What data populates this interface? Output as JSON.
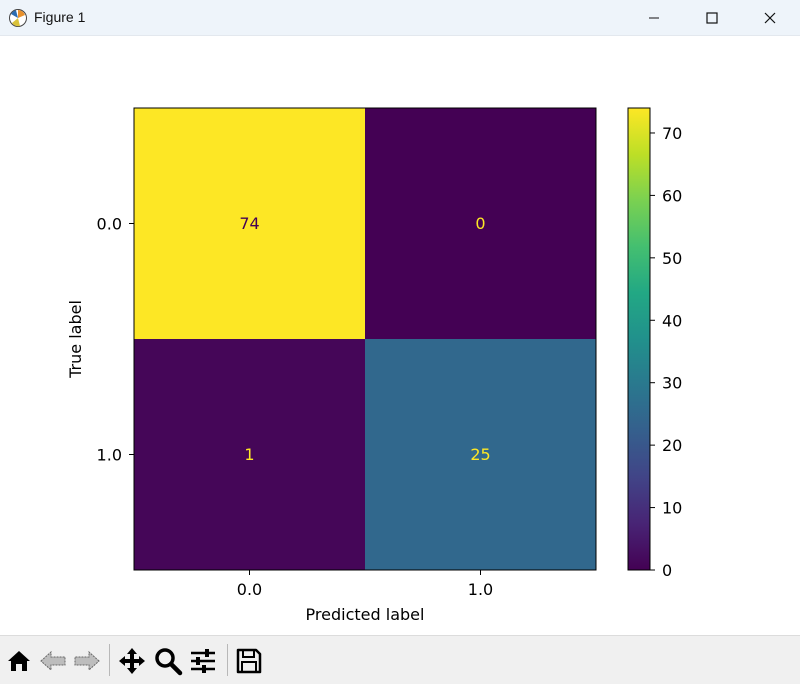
{
  "window": {
    "title": "Figure 1",
    "app_icon": "matplotlib-icon",
    "controls": [
      "minimize-icon",
      "maximize-icon",
      "close-icon"
    ]
  },
  "chart_data": {
    "type": "heatmap",
    "title": "",
    "xlabel": "Predicted label",
    "ylabel": "True label",
    "x_categories": [
      "0.0",
      "1.0"
    ],
    "y_categories": [
      "0.0",
      "1.0"
    ],
    "values": [
      [
        74,
        0
      ],
      [
        1,
        25
      ]
    ],
    "colormap": "viridis",
    "colorbar": {
      "min": 0,
      "max": 74,
      "ticks": [
        "0",
        "10",
        "20",
        "30",
        "40",
        "50",
        "60",
        "70"
      ]
    },
    "colors": {
      "high": "#fde725",
      "low": "#440154",
      "mid_25": "#31688e",
      "text_on_dark": "#fde725",
      "text_on_light": "#440154"
    }
  },
  "toolbar": {
    "buttons": [
      {
        "name": "home-button",
        "icon": "home-icon"
      },
      {
        "name": "back-button",
        "icon": "back-arrow-icon"
      },
      {
        "name": "forward-button",
        "icon": "forward-arrow-icon"
      },
      {
        "name": "pan-button",
        "icon": "move-icon"
      },
      {
        "name": "zoom-button",
        "icon": "zoom-icon"
      },
      {
        "name": "configure-subplots-button",
        "icon": "sliders-icon"
      },
      {
        "name": "save-button",
        "icon": "save-icon"
      }
    ]
  }
}
